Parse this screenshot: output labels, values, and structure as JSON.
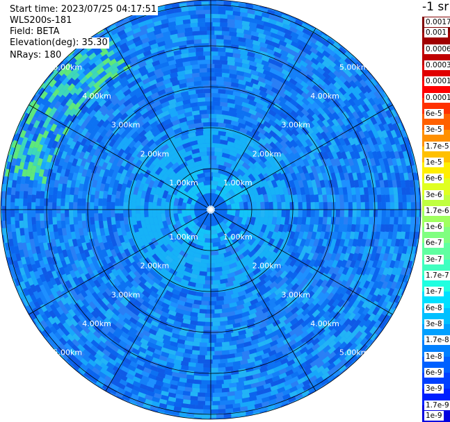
{
  "header": {
    "start_time": "Start time: 2023/07/25 04:17:51",
    "instrument": "WLS200s-181",
    "field": "Field: BETA",
    "elevation": "Elevation(deg): 35.30",
    "nrays": "NRays: 180"
  },
  "colorbar": {
    "unit": "-1 sr",
    "labels": [
      "0.0017",
      "0.001",
      "0.0006",
      "0.0003",
      "0.00017",
      "0.0001",
      "6e-5",
      "3e-5",
      "1.7e-5",
      "1e-5",
      "6e-6",
      "3e-6",
      "1.7e-6",
      "1e-6",
      "6e-7",
      "3e-7",
      "1.7e-7",
      "1e-7",
      "6e-8",
      "3e-8",
      "1.7e-8",
      "1e-8",
      "6e-9",
      "3e-9",
      "1.7e-9",
      "1e-9"
    ],
    "colors": [
      "#800000",
      "#a00000",
      "#c00000",
      "#e00000",
      "#ff0000",
      "#ff3000",
      "#ff6000",
      "#ff9000",
      "#ffc000",
      "#ffee00",
      "#e0ff20",
      "#c0ff40",
      "#a0ff60",
      "#80ff80",
      "#60ffa0",
      "#40ffc0",
      "#20ffe0",
      "#00e0ff",
      "#00c0ff",
      "#00a0ff",
      "#0080ff",
      "#0060ff",
      "#0040ff",
      "#0020ff",
      "#0000e0",
      "#0000a0"
    ]
  },
  "range_rings": {
    "labels": [
      "1.00km",
      "2.00km",
      "3.00km",
      "4.00km",
      "5.00km"
    ]
  },
  "field_colors": {
    "dominant": "#1a8cff",
    "secondary": "#0a5ef0",
    "inner": "#14c4f8",
    "center": "#0b6bef",
    "edge_highlight": "#5fe87a"
  }
}
